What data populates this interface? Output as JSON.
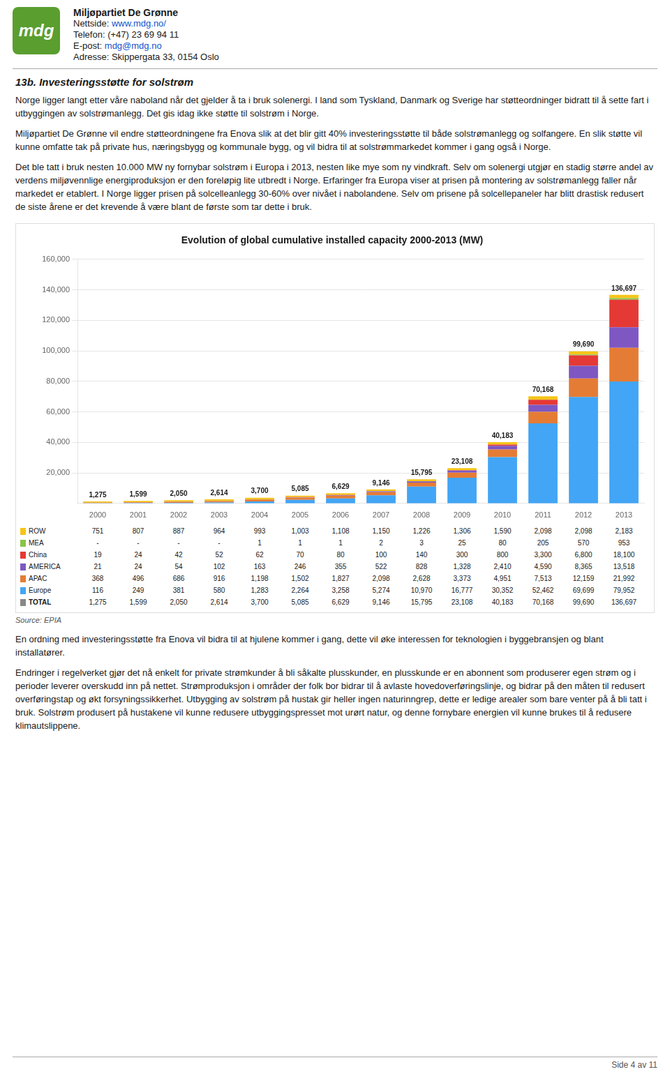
{
  "header": {
    "org_name": "Miljøpartiet De Grønne",
    "website_label": "Nettside: ",
    "website": "www.mdg.no/",
    "phone": "Telefon: (+47) 23 69 94 11",
    "email_label": "E-post: ",
    "email": "mdg@mdg.no",
    "address": "Adresse: Skippergata 33, 0154 Oslo"
  },
  "logo_color": "#5a9e2f",
  "logo_text": "mdg",
  "section_label": "13b.",
  "section_title": " Investeringsstøtte for solstrøm",
  "paragraphs": [
    "Norge ligger langt etter våre naboland når det gjelder å ta i bruk solenergi. I land som Tyskland, Danmark og Sverige har støtteordninger bidratt til å sette fart i utbyggingen av solstrømanlegg. Det gis idag ikke støtte til solstrøm i Norge.",
    "Miljøpartiet De Grønne vil endre støtteordningene fra Enova slik at det blir gitt 40% investeringsstøtte til både solstrømanlegg og solfangere. En slik støtte vil kunne omfatte tak på private hus, næringsbygg og kommunale bygg, og vil bidra til at solstrømmarkedet kommer i gang også i Norge.",
    "Det ble tatt i bruk nesten 10.000 MW ny fornybar solstrøm i Europa i 2013, nesten like mye som ny vindkraft. Selv om solenergi utgjør en stadig større andel av verdens miljøvennlige energiproduksjon er den foreløpig lite utbredt i Norge. Erfaringer fra Europa viser at prisen på montering av solstrømanlegg faller når markedet er etablert. I Norge ligger prisen på solcelleanlegg 30-60% over nivået i nabolandene. Selv om prisene på solcellepaneler har blitt drastisk redusert de siste årene er det krevende å være blant de første som tar dette i bruk."
  ],
  "post_chart_paragraphs": [
    "En ordning med investeringsstøtte fra Enova vil bidra til at hjulene kommer i gang, dette vil øke interessen for teknologien i byggebransjen og blant installatører.",
    "Endringer i regelverket gjør det nå enkelt for private strømkunder å bli såkalte plusskunder, en plusskunde er en abonnent som produserer egen strøm og i perioder leverer overskudd inn på nettet. Strømproduksjon i områder der folk bor bidrar til å avlaste hovedoverføringslinje, og bidrar på den måten til redusert overføringstap og økt forsyningssikkerhet. Utbygging av solstrøm på hustak gir heller ingen naturinngrep, dette er ledige arealer som bare venter på å bli tatt i bruk. Solstrøm produsert på hustakene vil kunne redusere utbyggingspresset mot urørt natur, og denne fornybare energien vil kunne brukes til å redusere klimautslippene."
  ],
  "footer": "Side 4 av 11",
  "bg_color": "#ffffff",
  "text_color": "#1a1a1a",
  "link_color": "#1155cc",
  "chart_data": {
    "type": "bar",
    "title": "Evolution of global cumulative installed capacity 2000-2013 (MW)",
    "stacked": true,
    "grid": true,
    "categories": [
      "2000",
      "2001",
      "2002",
      "2003",
      "2004",
      "2005",
      "2006",
      "2007",
      "2008",
      "2009",
      "2010",
      "2011",
      "2012",
      "2013"
    ],
    "series": [
      {
        "name": "Europe",
        "color": "#42a5f5",
        "values": [
          116,
          249,
          381,
          580,
          1283,
          2264,
          3258,
          5274,
          10970,
          16777,
          30352,
          52462,
          69699,
          79952
        ]
      },
      {
        "name": "APAC",
        "color": "#e57c35",
        "values": [
          368,
          496,
          686,
          916,
          1198,
          1502,
          1827,
          2098,
          2628,
          3373,
          4951,
          7513,
          12159,
          21992
        ]
      },
      {
        "name": "AMERICA",
        "color": "#7e57c2",
        "values": [
          21,
          24,
          54,
          102,
          163,
          246,
          355,
          522,
          828,
          1328,
          2410,
          4590,
          8365,
          13518
        ]
      },
      {
        "name": "China",
        "color": "#e53935",
        "values": [
          19,
          24,
          42,
          52,
          62,
          70,
          80,
          100,
          140,
          300,
          800,
          3300,
          6800,
          18100
        ]
      },
      {
        "name": "MEA",
        "color": "#8bc34a",
        "values": [
          0,
          0,
          0,
          0,
          1,
          1,
          1,
          2,
          3,
          25,
          80,
          205,
          570,
          953
        ]
      },
      {
        "name": "ROW",
        "color": "#f5c518",
        "values": [
          751,
          807,
          887,
          964,
          993,
          1003,
          1108,
          1150,
          1226,
          1306,
          1590,
          2098,
          2098,
          2183
        ]
      }
    ],
    "totals": [
      1275,
      1599,
      2050,
      2614,
      3700,
      5085,
      6629,
      9146,
      15795,
      23108,
      40183,
      70168,
      99690,
      136697
    ],
    "total_labels": [
      "1,275",
      "1,599",
      "2,050",
      "2,614",
      "3,700",
      "5,085",
      "6,629",
      "9,146",
      "15,795",
      "23,108",
      "40,183",
      "70,168",
      "99,690",
      "136,697"
    ],
    "ylim": [
      0,
      160000
    ],
    "yticks": [
      {
        "value": 20000,
        "label": "20,000"
      },
      {
        "value": 40000,
        "label": "40,000"
      },
      {
        "value": 60000,
        "label": "60,000"
      },
      {
        "value": 80000,
        "label": "80,000"
      },
      {
        "value": 100000,
        "label": "100,000"
      },
      {
        "value": 120000,
        "label": "120,000"
      },
      {
        "value": 140000,
        "label": "140,000"
      },
      {
        "value": 160000,
        "label": "160,000"
      }
    ],
    "table": [
      {
        "name": "ROW",
        "color": "#f5c518",
        "cells": [
          "751",
          "807",
          "887",
          "964",
          "993",
          "1,003",
          "1,108",
          "1,150",
          "1,226",
          "1,306",
          "1,590",
          "2,098",
          "2,098",
          "2,183"
        ]
      },
      {
        "name": "MEA",
        "color": "#8bc34a",
        "cells": [
          "-",
          "-",
          "-",
          "-",
          "1",
          "1",
          "1",
          "2",
          "3",
          "25",
          "80",
          "205",
          "570",
          "953"
        ]
      },
      {
        "name": "China",
        "color": "#e53935",
        "cells": [
          "19",
          "24",
          "42",
          "52",
          "62",
          "70",
          "80",
          "100",
          "140",
          "300",
          "800",
          "3,300",
          "6,800",
          "18,100"
        ]
      },
      {
        "name": "AMERICA",
        "color": "#7e57c2",
        "cells": [
          "21",
          "24",
          "54",
          "102",
          "163",
          "246",
          "355",
          "522",
          "828",
          "1,328",
          "2,410",
          "4,590",
          "8,365",
          "13,518"
        ]
      },
      {
        "name": "APAC",
        "color": "#e57c35",
        "cells": [
          "368",
          "496",
          "686",
          "916",
          "1,198",
          "1,502",
          "1,827",
          "2,098",
          "2,628",
          "3,373",
          "4,951",
          "7,513",
          "12,159",
          "21,992"
        ]
      },
      {
        "name": "Europe",
        "color": "#42a5f5",
        "cells": [
          "116",
          "249",
          "381",
          "580",
          "1,283",
          "2,264",
          "3,258",
          "5,274",
          "10,970",
          "16,777",
          "30,352",
          "52,462",
          "69,699",
          "79,952"
        ]
      },
      {
        "name": "TOTAL",
        "color": "#888888",
        "cells": [
          "1,275",
          "1,599",
          "2,050",
          "2,614",
          "3,700",
          "5,085",
          "6,629",
          "9,146",
          "15,795",
          "23,108",
          "40,183",
          "70,168",
          "99,690",
          "136,697"
        ]
      }
    ],
    "source": "Source: EPIA"
  }
}
